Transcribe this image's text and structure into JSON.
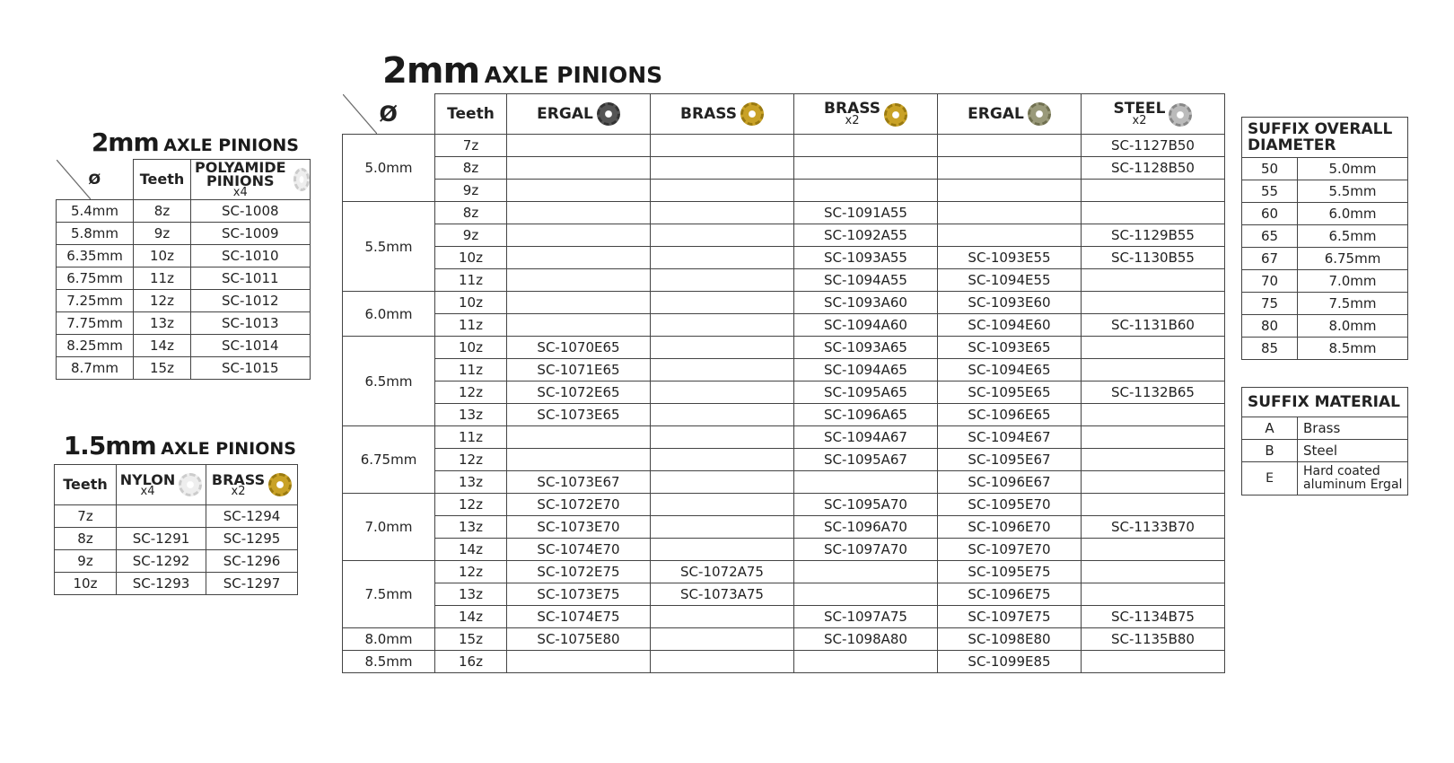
{
  "pinions_2mm_polyamide": {
    "title": {
      "size": "2mm",
      "text": "AXLE PINIONS"
    },
    "headers": [
      {
        "label": "Ø"
      },
      {
        "label": "Teeth"
      },
      {
        "label": "POLYAMIDE PINIONS",
        "note": "x4"
      }
    ],
    "rows": [
      [
        "5.4mm",
        "8z",
        "SC-1008"
      ],
      [
        "5.8mm",
        "9z",
        "SC-1009"
      ],
      [
        "6.35mm",
        "10z",
        "SC-1010"
      ],
      [
        "6.75mm",
        "11z",
        "SC-1011"
      ],
      [
        "7.25mm",
        "12z",
        "SC-1012"
      ],
      [
        "7.75mm",
        "13z",
        "SC-1013"
      ],
      [
        "8.25mm",
        "14z",
        "SC-1014"
      ],
      [
        "8.7mm",
        "15z",
        "SC-1015"
      ]
    ]
  },
  "pinions_1_5mm": {
    "title": {
      "size": "1.5mm",
      "text": "AXLE PINIONS"
    },
    "headers": [
      {
        "label": "Teeth"
      },
      {
        "label": "NYLON",
        "note": "x4"
      },
      {
        "label": "BRASS",
        "note": "x2"
      }
    ],
    "rows": [
      [
        "7z",
        null,
        "SC-1294"
      ],
      [
        "8z",
        "SC-1291",
        "SC-1295"
      ],
      [
        "9z",
        "SC-1292",
        "SC-1296"
      ],
      [
        "10z",
        "SC-1293",
        "SC-1297"
      ]
    ]
  },
  "pinions_2mm": {
    "title": {
      "size": "2mm",
      "text": "AXLE PINIONS"
    },
    "headers": [
      {
        "label": "Ø"
      },
      {
        "label": "Teeth"
      },
      {
        "label": "ERGAL"
      },
      {
        "label": "BRASS"
      },
      {
        "label": "BRASS",
        "note": "x2"
      },
      {
        "label": "ERGAL"
      },
      {
        "label": "STEEL",
        "note": "x2"
      }
    ],
    "groups": [
      {
        "diameter": "5.0mm",
        "rows": [
          [
            "7z",
            null,
            null,
            null,
            null,
            "SC-1127B50"
          ],
          [
            "8z",
            null,
            null,
            null,
            null,
            "SC-1128B50"
          ],
          [
            "9z",
            null,
            null,
            null,
            null,
            null
          ]
        ]
      },
      {
        "diameter": "5.5mm",
        "rows": [
          [
            "8z",
            null,
            null,
            "SC-1091A55",
            null,
            null
          ],
          [
            "9z",
            null,
            null,
            "SC-1092A55",
            null,
            "SC-1129B55"
          ],
          [
            "10z",
            null,
            null,
            "SC-1093A55",
            "SC-1093E55",
            "SC-1130B55"
          ],
          [
            "11z",
            null,
            null,
            "SC-1094A55",
            "SC-1094E55",
            null
          ]
        ]
      },
      {
        "diameter": "6.0mm",
        "rows": [
          [
            "10z",
            null,
            null,
            "SC-1093A60",
            "SC-1093E60",
            null
          ],
          [
            "11z",
            null,
            null,
            "SC-1094A60",
            "SC-1094E60",
            "SC-1131B60"
          ]
        ]
      },
      {
        "diameter": "6.5mm",
        "rows": [
          [
            "10z",
            "SC-1070E65",
            null,
            "SC-1093A65",
            "SC-1093E65",
            null
          ],
          [
            "11z",
            "SC-1071E65",
            null,
            "SC-1094A65",
            "SC-1094E65",
            null
          ],
          [
            "12z",
            "SC-1072E65",
            null,
            "SC-1095A65",
            "SC-1095E65",
            "SC-1132B65"
          ],
          [
            "13z",
            "SC-1073E65",
            null,
            "SC-1096A65",
            "SC-1096E65",
            null
          ]
        ]
      },
      {
        "diameter": "6.75mm",
        "rows": [
          [
            "11z",
            null,
            null,
            "SC-1094A67",
            "SC-1094E67",
            null
          ],
          [
            "12z",
            null,
            null,
            "SC-1095A67",
            "SC-1095E67",
            null
          ],
          [
            "13z",
            "SC-1073E67",
            null,
            null,
            "SC-1096E67",
            null
          ]
        ]
      },
      {
        "diameter": "7.0mm",
        "rows": [
          [
            "12z",
            "SC-1072E70",
            null,
            "SC-1095A70",
            "SC-1095E70",
            null
          ],
          [
            "13z",
            "SC-1073E70",
            null,
            "SC-1096A70",
            "SC-1096E70",
            "SC-1133B70"
          ],
          [
            "14z",
            "SC-1074E70",
            null,
            "SC-1097A70",
            "SC-1097E70",
            null
          ]
        ]
      },
      {
        "diameter": "7.5mm",
        "rows": [
          [
            "12z",
            "SC-1072E75",
            "SC-1072A75",
            null,
            "SC-1095E75",
            null
          ],
          [
            "13z",
            "SC-1073E75",
            "SC-1073A75",
            null,
            "SC-1096E75",
            null
          ],
          [
            "14z",
            "SC-1074E75",
            null,
            "SC-1097A75",
            "SC-1097E75",
            "SC-1134B75"
          ]
        ]
      },
      {
        "diameter": "8.0mm",
        "rows": [
          [
            "15z",
            "SC-1075E80",
            null,
            "SC-1098A80",
            "SC-1098E80",
            "SC-1135B80"
          ]
        ]
      },
      {
        "diameter": "8.5mm",
        "rows": [
          [
            "16z",
            null,
            null,
            null,
            "SC-1099E85",
            null
          ]
        ]
      }
    ]
  },
  "suffix_diameter": {
    "title": "SUFFIX OVERALL DIAMETER",
    "rows": [
      [
        "50",
        "5.0mm"
      ],
      [
        "55",
        "5.5mm"
      ],
      [
        "60",
        "6.0mm"
      ],
      [
        "65",
        "6.5mm"
      ],
      [
        "67",
        "6.75mm"
      ],
      [
        "70",
        "7.0mm"
      ],
      [
        "75",
        "7.5mm"
      ],
      [
        "80",
        "8.0mm"
      ],
      [
        "85",
        "8.5mm"
      ]
    ]
  },
  "suffix_material": {
    "title": "SUFFIX MATERIAL",
    "rows": [
      [
        "A",
        "Brass"
      ],
      [
        "B",
        "Steel"
      ],
      [
        "E",
        "Hard coated aluminum Ergal"
      ]
    ]
  }
}
